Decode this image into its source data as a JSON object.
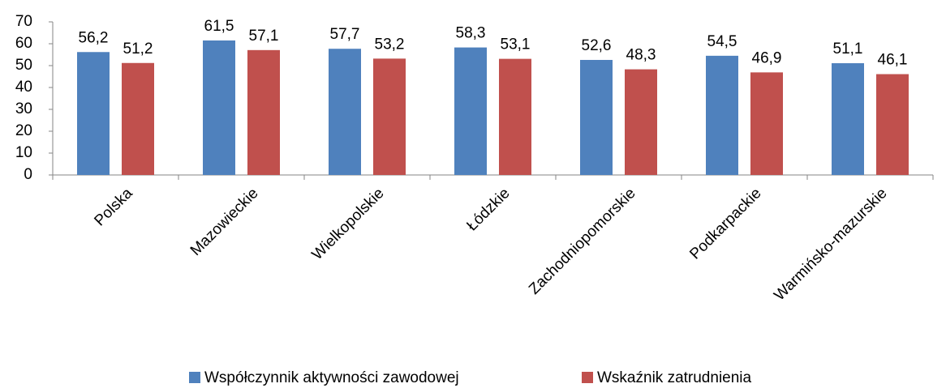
{
  "chart_data": {
    "type": "bar",
    "categories": [
      "Polska",
      "Mazowieckie",
      "Wielkopolskie",
      "Łódzkie",
      "Zachodniopomorskie",
      "Podkarpackie",
      "Warmińsko-mazurskie"
    ],
    "series": [
      {
        "name": "Współczynnik aktywności zawodowej",
        "color": "#4f81bd",
        "values": [
          56.2,
          61.5,
          57.7,
          58.3,
          52.6,
          54.5,
          51.1
        ],
        "value_labels": [
          "56,2",
          "61,5",
          "57,7",
          "58,3",
          "52,6",
          "54,5",
          "51,1"
        ]
      },
      {
        "name": "Wskaźnik zatrudnienia",
        "color": "#c0504d",
        "values": [
          51.2,
          57.1,
          53.2,
          53.1,
          48.3,
          46.9,
          46.1
        ],
        "value_labels": [
          "51,2",
          "57,1",
          "53,2",
          "53,1",
          "48,3",
          "46,9",
          "46,1"
        ]
      }
    ],
    "ylim": [
      0,
      70
    ],
    "yticks": [
      0,
      10,
      20,
      30,
      40,
      50,
      60,
      70
    ],
    "grid": false,
    "legend": "bottom"
  }
}
